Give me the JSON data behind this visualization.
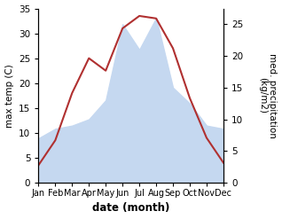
{
  "months": [
    "Jan",
    "Feb",
    "Mar",
    "Apr",
    "May",
    "Jun",
    "Jul",
    "Aug",
    "Sep",
    "Oct",
    "Nov",
    "Dec"
  ],
  "temp": [
    3.5,
    8.5,
    18.0,
    25.0,
    22.5,
    31.0,
    33.5,
    33.0,
    27.0,
    17.0,
    9.0,
    4.0
  ],
  "precip": [
    7.0,
    8.5,
    9.0,
    10.0,
    13.0,
    25.0,
    21.0,
    26.0,
    15.0,
    12.5,
    9.0,
    8.5
  ],
  "temp_color": "#b03030",
  "precip_color": "#c5d8f0",
  "left_ylabel": "max temp (C)",
  "right_ylabel": "med. precipitation\n(kg/m2)",
  "xlabel": "date (month)",
  "left_ylim": [
    0,
    35
  ],
  "right_ylim": [
    0,
    27.5
  ],
  "left_yticks": [
    0,
    5,
    10,
    15,
    20,
    25,
    30,
    35
  ],
  "right_yticks": [
    0,
    5,
    10,
    15,
    20,
    25
  ],
  "figsize": [
    3.18,
    2.47
  ],
  "dpi": 100
}
